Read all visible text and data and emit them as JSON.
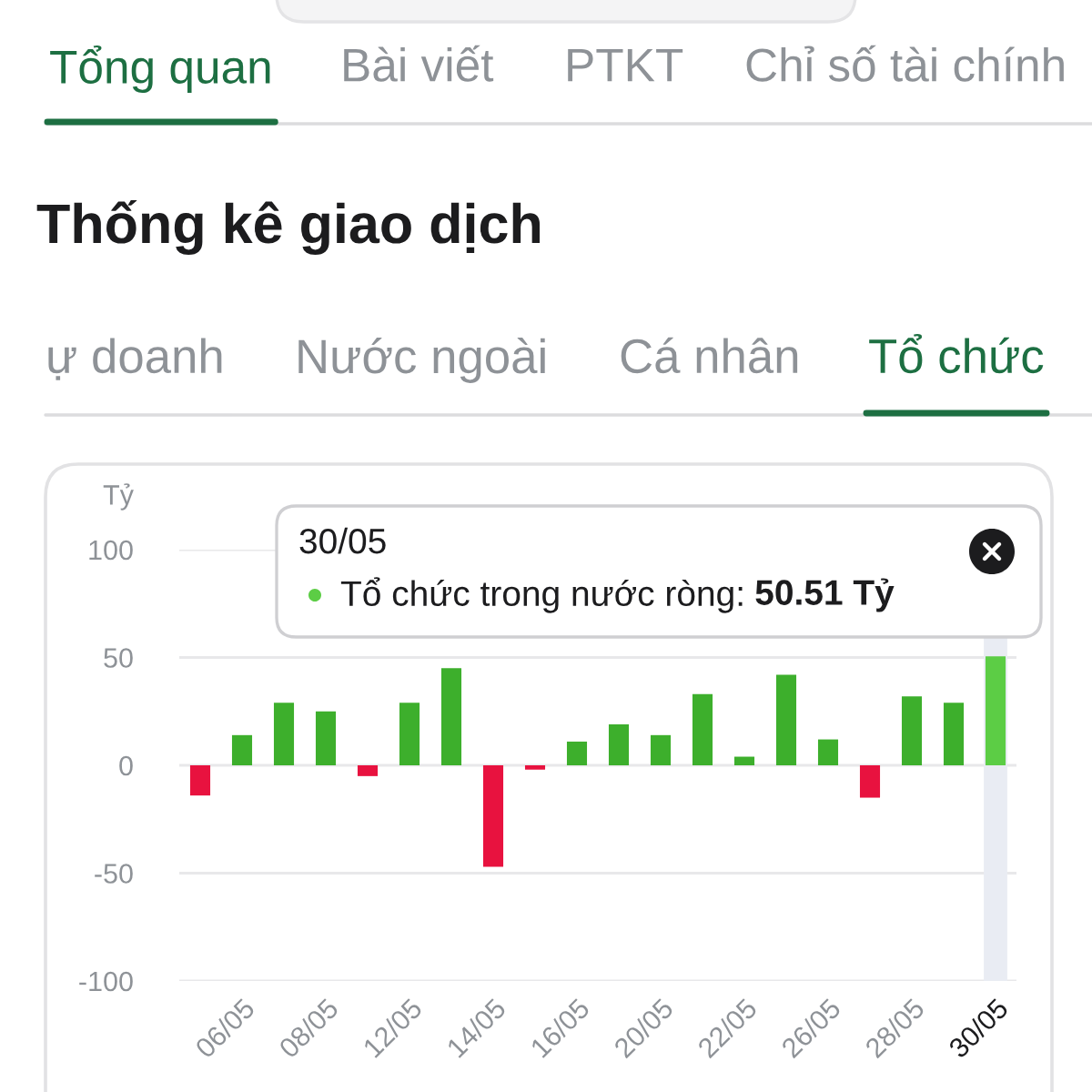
{
  "chart_data": {
    "type": "bar",
    "title": "Thống kê giao dịch",
    "ylabel": "Tỷ",
    "categories": [
      null,
      "06/05",
      null,
      "08/05",
      null,
      "12/05",
      null,
      "14/05",
      null,
      "16/05",
      null,
      "20/05",
      null,
      "22/05",
      null,
      "26/05",
      null,
      "28/05",
      null,
      "30/05"
    ],
    "values": [
      -14,
      14,
      29,
      25,
      -5,
      29,
      45,
      -47,
      -2,
      11,
      19,
      14,
      33,
      4,
      42,
      12,
      -15,
      32,
      29,
      50.51
    ],
    "colors": [
      "#e8123f",
      "#3daf2c",
      "#3daf2c",
      "#3daf2c",
      "#e8123f",
      "#3daf2c",
      "#3daf2c",
      "#e8123f",
      "#e8123f",
      "#3daf2c",
      "#3daf2c",
      "#3daf2c",
      "#3daf2c",
      "#3daf2c",
      "#3daf2c",
      "#3daf2c",
      "#e8123f",
      "#3daf2c",
      "#3daf2c",
      "#5ccd45"
    ],
    "ylim": [
      -100,
      100
    ],
    "yticks": [
      -100,
      -50,
      0,
      50,
      100
    ],
    "grid": "y",
    "bands": [
      {
        "axis": "x",
        "from": "30/05",
        "to": "30/05",
        "color": "#e9ecf3"
      }
    ],
    "annotations": [
      "Tổng quan",
      "Bài viết",
      "PTKT",
      "Chỉ số tài chính",
      "ự doanh",
      "Nước ngoài",
      "Cá nhân",
      "Tổ chức",
      "30/05",
      "Tổ chức trong nước ròng:",
      "50.51 Tỷ"
    ]
  }
}
